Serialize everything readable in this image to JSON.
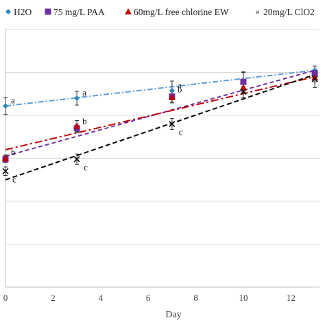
{
  "chart_data": {
    "type": "scatter",
    "xlabel": "Day",
    "ylabel": "",
    "xlim": [
      0,
      13.2
    ],
    "ylim": [
      0,
      6
    ],
    "x_ticks": [
      0,
      2,
      4,
      6,
      8,
      10,
      12
    ],
    "x_tick_labels": [
      "0",
      "2",
      "4",
      "6",
      "8",
      "10",
      "12"
    ],
    "grid": "horizontal",
    "legend_position": "top",
    "series": [
      {
        "name": "H2O",
        "marker": "diamond",
        "color": "#2e86c1",
        "trend_color": "#5b9bd5",
        "trend_dash": "8 3 2 3",
        "points": [
          {
            "x": 0,
            "y": 4.22,
            "err": 0.2,
            "label": "a"
          },
          {
            "x": 3,
            "y": 4.4,
            "err": 0.16,
            "label": "a"
          },
          {
            "x": 7,
            "y": 4.58,
            "err": 0.22,
            "label": "a"
          },
          {
            "x": 10,
            "y": 4.8,
            "err": 0.22,
            "label": ""
          },
          {
            "x": 13,
            "y": 5.05,
            "err": 0.1,
            "label": ""
          }
        ],
        "trend": {
          "x": [
            0,
            13
          ],
          "y": [
            4.22,
            5.05
          ]
        }
      },
      {
        "name": "75 mg/L PAA",
        "marker": "square",
        "color": "#7030a0",
        "trend_color": "#7030a0",
        "trend_dash": "6 4",
        "points": [
          {
            "x": 0,
            "y": 2.98,
            "err": 0.08,
            "label": "b"
          },
          {
            "x": 3,
            "y": 3.7,
            "err": 0.1,
            "label": "b"
          },
          {
            "x": 7,
            "y": 4.44,
            "err": 0.13,
            "label": "b"
          },
          {
            "x": 10,
            "y": 4.78,
            "err": 0.22,
            "label": ""
          },
          {
            "x": 13,
            "y": 4.98,
            "err": 0.1,
            "label": ""
          }
        ],
        "trend": {
          "x": [
            0,
            13
          ],
          "y": [
            3.05,
            5.05
          ]
        }
      },
      {
        "name": "60mg/L free chlorine EW",
        "marker": "triangle",
        "color": "#c00000",
        "trend_color": "#c00000",
        "trend_dash": "11 4 3 4",
        "points": [
          {
            "x": 0,
            "y": 3.0,
            "err": 0.08,
            "label": ""
          },
          {
            "x": 3,
            "y": 3.75,
            "err": 0.13,
            "label": ""
          },
          {
            "x": 7,
            "y": 4.42,
            "err": 0.13,
            "label": ""
          },
          {
            "x": 10,
            "y": 4.65,
            "err": 0.12,
            "label": ""
          },
          {
            "x": 13,
            "y": 4.88,
            "err": 0.1,
            "label": ""
          }
        ],
        "trend": {
          "x": [
            0,
            13
          ],
          "y": [
            3.2,
            4.9
          ]
        }
      },
      {
        "name": "20mg/L ClO2",
        "marker": "x",
        "color": "#111111",
        "trend_color": "#000000",
        "trend_dash": "7 4",
        "points": [
          {
            "x": 0,
            "y": 2.7,
            "err": 0.1,
            "label": "c"
          },
          {
            "x": 3,
            "y": 2.98,
            "err": 0.12,
            "label": "c"
          },
          {
            "x": 7,
            "y": 3.8,
            "err": 0.13,
            "label": "c"
          },
          {
            "x": 10,
            "y": 4.55,
            "err": 0.13,
            "label": ""
          },
          {
            "x": 13,
            "y": 4.85,
            "err": 0.2,
            "label": ""
          }
        ],
        "trend": {
          "x": [
            0,
            13
          ],
          "y": [
            2.5,
            4.95
          ]
        }
      }
    ]
  }
}
